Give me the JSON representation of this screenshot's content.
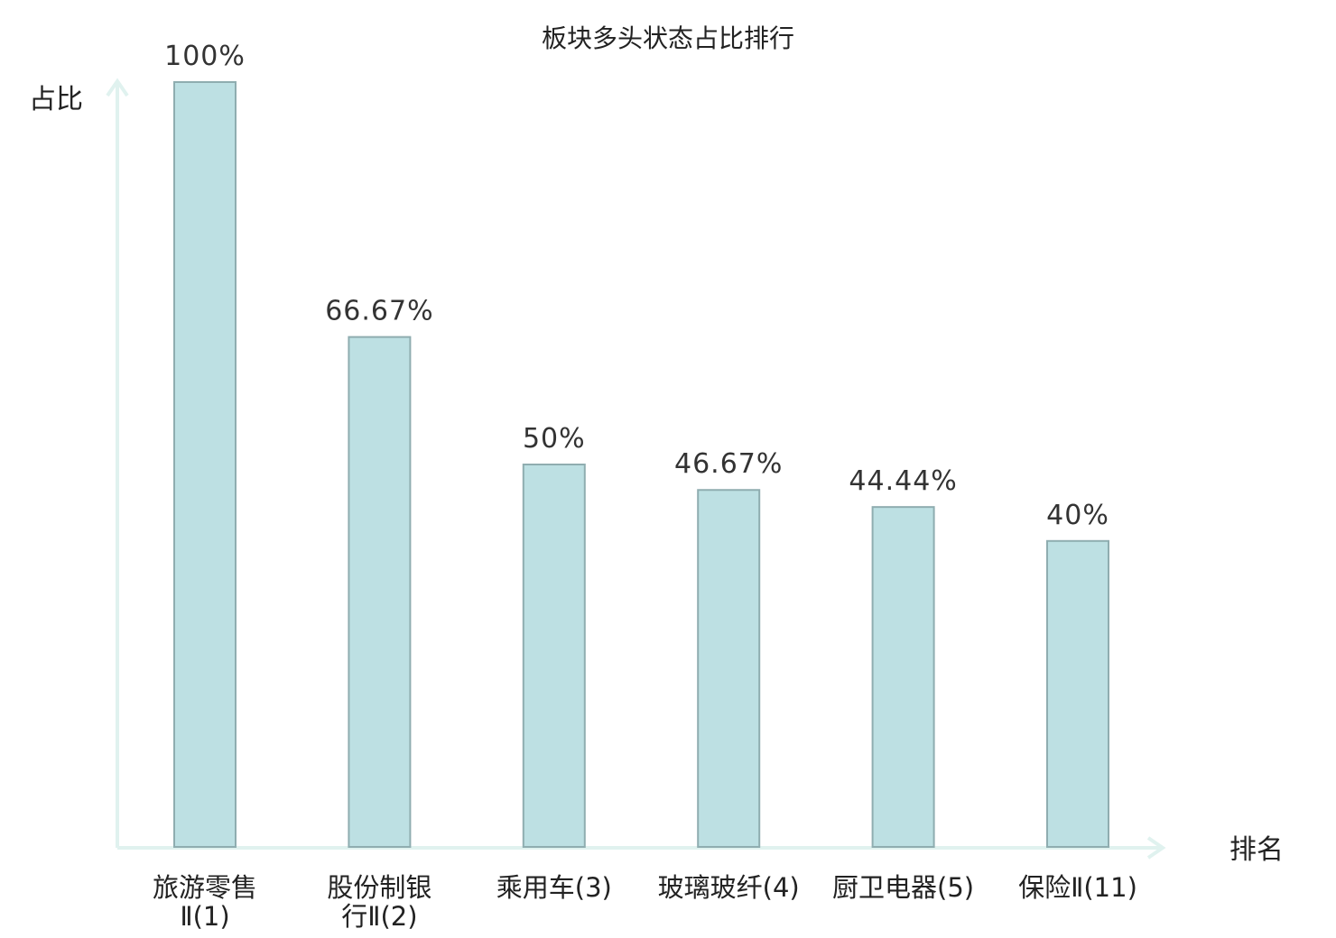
{
  "chart_data": {
    "type": "bar",
    "title": "板块多头状态占比排行",
    "ylabel": "占比",
    "xlabel": "排名",
    "ylim": [
      0,
      100
    ],
    "unit": "%",
    "categories": [
      [
        "旅游零售",
        "Ⅱ(1)"
      ],
      [
        "股份制银",
        "行Ⅱ(2)"
      ],
      [
        "乘用车(3)"
      ],
      [
        "玻璃玻纤(4)"
      ],
      [
        "厨卫电器(5)"
      ],
      [
        "保险Ⅱ(11)"
      ]
    ],
    "values": [
      100,
      66.67,
      50,
      46.67,
      44.44,
      40
    ],
    "value_labels": [
      "100%",
      "66.67%",
      "50%",
      "46.67%",
      "44.44%",
      "40%"
    ],
    "highlight_index": 5,
    "colors": {
      "bar_fill": "#bde0e3",
      "bar_stroke": "#8fadb0",
      "axis": "#e0f2ef",
      "highlight_label": "#e02020",
      "text": "#222222"
    },
    "grid": false
  }
}
